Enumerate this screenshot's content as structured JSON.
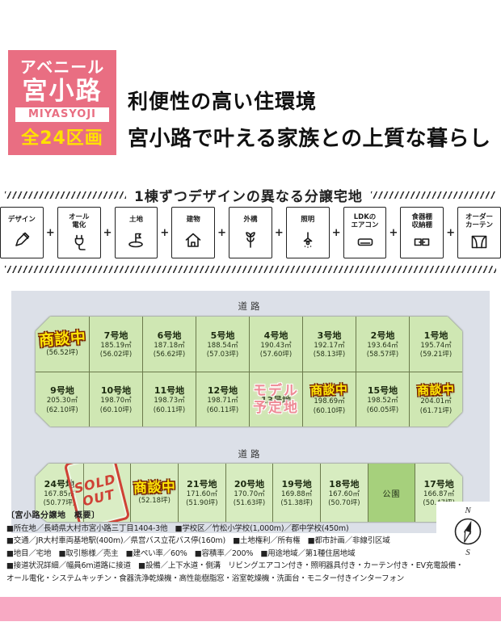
{
  "brand": {
    "line1": "アベニール",
    "line2": "宮小路",
    "romaji": "MIYASYOJI",
    "units": "全24区画"
  },
  "headline": {
    "line1": "利便性の高い住環境",
    "line2": "宮小路で叶える家族との上質な暮らし"
  },
  "section": {
    "title": "1棟ずつデザインの異なる分譲宅地",
    "plus": "+"
  },
  "features": [
    {
      "label": "デザイン",
      "icon": "pencil-icon"
    },
    {
      "label": "オール\n電化",
      "icon": "plug-icon"
    },
    {
      "label": "土地",
      "icon": "land-flag-icon"
    },
    {
      "label": "建物",
      "icon": "house-icon"
    },
    {
      "label": "外構",
      "icon": "tree-icon"
    },
    {
      "label": "照明",
      "icon": "pendant-light-icon"
    },
    {
      "label": "LDKの\nエアコン",
      "icon": "air-conditioner-icon"
    },
    {
      "label": "食器棚\n収納棚",
      "icon": "cabinet-icon"
    },
    {
      "label": "オーダー\nカーテン",
      "icon": "curtain-icon"
    }
  ],
  "map": {
    "road_label": "道路",
    "park_label": "公園",
    "status_labels": {
      "negotiating": "商談中",
      "sold_line1": "SOLD",
      "sold_line2": "OUT",
      "model_line1": "モデル",
      "model_line2": "予定地"
    },
    "row1": [
      {
        "name": "",
        "m2": "",
        "tsubo": "(56.52坪)",
        "status": "nego"
      },
      {
        "name": "7号地",
        "m2": "185.19㎡",
        "tsubo": "(56.02坪)",
        "status": ""
      },
      {
        "name": "6号地",
        "m2": "187.18㎡",
        "tsubo": "(56.62坪)",
        "status": ""
      },
      {
        "name": "5号地",
        "m2": "188.54㎡",
        "tsubo": "(57.03坪)",
        "status": ""
      },
      {
        "name": "4号地",
        "m2": "190.43㎡",
        "tsubo": "(57.60坪)",
        "status": ""
      },
      {
        "name": "3号地",
        "m2": "192.17㎡",
        "tsubo": "(58.13坪)",
        "status": ""
      },
      {
        "name": "2号地",
        "m2": "193.64㎡",
        "tsubo": "(58.57坪)",
        "status": ""
      },
      {
        "name": "1号地",
        "m2": "195.74㎡",
        "tsubo": "(59.21坪)",
        "status": ""
      }
    ],
    "row2": [
      {
        "name": "9号地",
        "m2": "205.30㎡",
        "tsubo": "(62.10坪)",
        "status": ""
      },
      {
        "name": "10号地",
        "m2": "198.70㎡",
        "tsubo": "(60.10坪)",
        "status": ""
      },
      {
        "name": "11号地",
        "m2": "198.73㎡",
        "tsubo": "(60.11坪)",
        "status": ""
      },
      {
        "name": "12号地",
        "m2": "198.71㎡",
        "tsubo": "(60.11坪)",
        "status": ""
      },
      {
        "name": "13号地",
        "m2": "",
        "tsubo": "",
        "status": "model"
      },
      {
        "name": "",
        "m2": "198.69㎡",
        "tsubo": "(60.10坪)",
        "status": "nego"
      },
      {
        "name": "15号地",
        "m2": "198.52㎡",
        "tsubo": "(60.05坪)",
        "status": ""
      },
      {
        "name": "",
        "m2": "204.01㎡",
        "tsubo": "(61.71坪)",
        "status": "nego"
      }
    ],
    "row3": [
      {
        "name": "24号地",
        "m2": "167.85㎡",
        "tsubo": "(50.77坪)",
        "status": ""
      },
      {
        "name": "",
        "m2": "",
        "tsubo": "",
        "status": "sold"
      },
      {
        "name": "",
        "m2": "",
        "tsubo": "(52.18坪)",
        "status": "nego"
      },
      {
        "name": "21号地",
        "m2": "171.60㎡",
        "tsubo": "(51.90坪)",
        "status": ""
      },
      {
        "name": "20号地",
        "m2": "170.70㎡",
        "tsubo": "(51.63坪)",
        "status": ""
      },
      {
        "name": "19号地",
        "m2": "169.88㎡",
        "tsubo": "(51.38坪)",
        "status": ""
      },
      {
        "name": "18号地",
        "m2": "167.60㎡",
        "tsubo": "(50.70坪)",
        "status": ""
      },
      {
        "park": true
      },
      {
        "name": "17号地",
        "m2": "166.87㎡",
        "tsubo": "(50.47坪)",
        "status": ""
      }
    ]
  },
  "summary": {
    "heading": "〔宮小路分譲地　概要〕",
    "lines": [
      "■所在地／長崎県大村市宮小路三丁目1404-3他　■学校区／竹松小学校(1,000m)／郡中学校(450m)",
      "■交通／JR大村車両基地駅(400m)／県営バス立花バス停(160m)　■土地権利／所有権　■都市計画／非線引区域",
      "■地目／宅地　■取引態様／売主　■建ぺい率／60%　■容積率／200%　■用途地域／第1種住居地域",
      "■接道状況詳細／幅員6m道路に接道　■設備／上下水道・側溝　リビングエアコン付き・照明器具付き・カーテン付き・EV充電設備・",
      "オール電化・システムキッチン・食器洗浄乾燥機・高性能樹脂窓・浴室乾燥機・洗面台・モニター付きインターフォン"
    ]
  },
  "compass": {
    "north": "N",
    "south": "S"
  },
  "colors": {
    "brand_pink": "#e96e82",
    "accent_yellow": "#ffe100",
    "stamp_yellow": "#ffe608",
    "stamp_outline": "#7b2800",
    "sold_red": "#cf4135",
    "model_pink": "#ee8a95",
    "lot_green": "#cfe7b3",
    "lot_green_light": "#d7ecc0",
    "park_green": "#a6d07c",
    "road_gray": "#dce0e8",
    "bottom_bar_pink": "#f8a9c3"
  }
}
